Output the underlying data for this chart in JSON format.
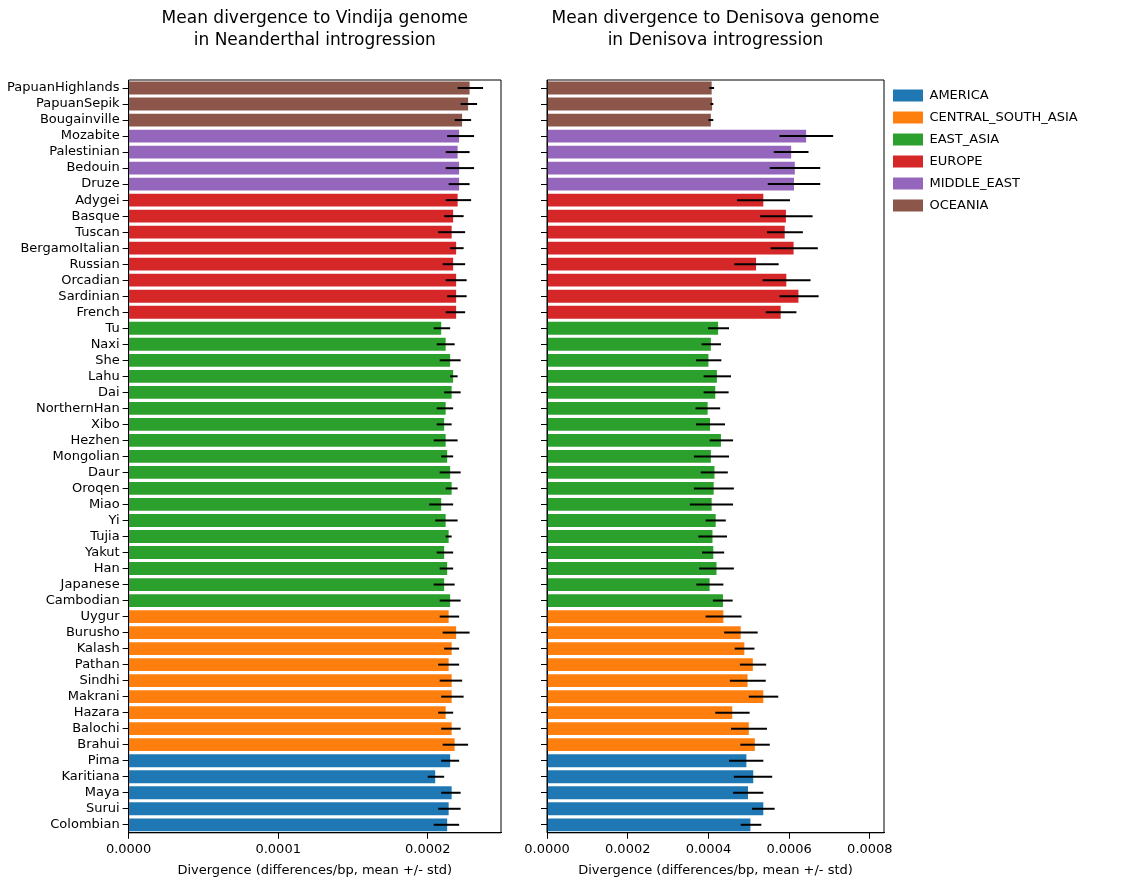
{
  "chart_data": [
    {
      "type": "bar",
      "orientation": "horizontal",
      "title": "Mean divergence to Vindija genome\nin Neanderthal introgression",
      "xlabel": "Divergence (differences/bp, mean +/- std)",
      "categories": [
        "PapuanHighlands",
        "PapuanSepik",
        "Bougainville",
        "Mozabite",
        "Palestinian",
        "Bedouin",
        "Druze",
        "Adygei",
        "Basque",
        "Tuscan",
        "BergamoItalian",
        "Russian",
        "Orcadian",
        "Sardinian",
        "French",
        "Tu",
        "Naxi",
        "She",
        "Lahu",
        "Dai",
        "NorthernHan",
        "Xibo",
        "Hezhen",
        "Mongolian",
        "Daur",
        "Oroqen",
        "Miao",
        "Yi",
        "Tujia",
        "Yakut",
        "Han",
        "Japanese",
        "Cambodian",
        "Uygur",
        "Burusho",
        "Kalash",
        "Pathan",
        "Sindhi",
        "Makrani",
        "Hazara",
        "Balochi",
        "Brahui",
        "Pima",
        "Karitiana",
        "Maya",
        "Surui",
        "Colombian"
      ],
      "xlim": [
        0,
        0.000249
      ],
      "xticks": [
        {
          "value": 0,
          "label": "0.0000"
        },
        {
          "value": 0.0001,
          "label": "0.0001"
        },
        {
          "value": 0.0002,
          "label": "0.0002"
        }
      ],
      "grid": false,
      "series": [
        {
          "color": "#1f77b4",
          "values": [
            null,
            null,
            null,
            null,
            null,
            null,
            null,
            null,
            null,
            null,
            null,
            null,
            null,
            null,
            null,
            null,
            null,
            null,
            null,
            null,
            null,
            null,
            null,
            null,
            null,
            null,
            null,
            null,
            null,
            null,
            null,
            null,
            null,
            null,
            null,
            null,
            null,
            null,
            null,
            null,
            null,
            null,
            0.000215,
            0.000205,
            0.000216,
            0.000214,
            0.000213
          ],
          "errors": [
            null,
            null,
            null,
            null,
            null,
            null,
            null,
            null,
            null,
            null,
            null,
            null,
            null,
            null,
            null,
            null,
            null,
            null,
            null,
            null,
            null,
            null,
            null,
            null,
            null,
            null,
            null,
            null,
            null,
            null,
            null,
            null,
            null,
            null,
            null,
            null,
            null,
            null,
            null,
            null,
            null,
            null,
            [
              0.000209,
              0.000221
            ],
            [
              0.0002,
              0.000211
            ],
            [
              0.000209,
              0.000222
            ],
            [
              0.000207,
              0.000222
            ],
            [
              0.000204,
              0.000221
            ]
          ]
        },
        {
          "color": "#ff7f0e",
          "values": [
            null,
            null,
            null,
            null,
            null,
            null,
            null,
            null,
            null,
            null,
            null,
            null,
            null,
            null,
            null,
            null,
            null,
            null,
            null,
            null,
            null,
            null,
            null,
            null,
            null,
            null,
            null,
            null,
            null,
            null,
            null,
            null,
            null,
            0.000214,
            0.000219,
            0.000216,
            0.000214,
            0.000216,
            0.000216,
            0.000212,
            0.000216,
            0.000218,
            null,
            null,
            null,
            null,
            null
          ],
          "errors": [
            null,
            null,
            null,
            null,
            null,
            null,
            null,
            null,
            null,
            null,
            null,
            null,
            null,
            null,
            null,
            null,
            null,
            null,
            null,
            null,
            null,
            null,
            null,
            null,
            null,
            null,
            null,
            null,
            null,
            null,
            null,
            null,
            null,
            [
              0.000208,
              0.000221
            ],
            [
              0.00021,
              0.000228
            ],
            [
              0.000211,
              0.000221
            ],
            [
              0.000207,
              0.000221
            ],
            [
              0.000208,
              0.000223
            ],
            [
              0.000209,
              0.000224
            ],
            [
              0.000207,
              0.000217
            ],
            [
              0.000209,
              0.000222
            ],
            [
              0.00021,
              0.000227
            ],
            null,
            null,
            null,
            null,
            null
          ]
        },
        {
          "color": "#2ca02c",
          "values": [
            null,
            null,
            null,
            null,
            null,
            null,
            null,
            null,
            null,
            null,
            null,
            null,
            null,
            null,
            null,
            0.000209,
            0.000212,
            0.000215,
            0.000217,
            0.000216,
            0.000212,
            0.000211,
            0.000212,
            0.000213,
            0.000215,
            0.000216,
            0.000209,
            0.000212,
            0.000214,
            0.000211,
            0.000213,
            0.000211,
            0.000215,
            null,
            null,
            null,
            null,
            null,
            null,
            null,
            null,
            null,
            null,
            null,
            null,
            null,
            null
          ],
          "errors": [
            null,
            null,
            null,
            null,
            null,
            null,
            null,
            null,
            null,
            null,
            null,
            null,
            null,
            null,
            null,
            [
              0.000204,
              0.000215
            ],
            [
              0.000206,
              0.000218
            ],
            [
              0.000208,
              0.000222
            ],
            [
              0.000215,
              0.00022
            ],
            [
              0.000211,
              0.000222
            ],
            [
              0.000206,
              0.000217
            ],
            [
              0.000206,
              0.000216
            ],
            [
              0.000204,
              0.00022
            ],
            [
              0.000209,
              0.000217
            ],
            [
              0.000208,
              0.000222
            ],
            [
              0.000212,
              0.00022
            ],
            [
              0.000201,
              0.000217
            ],
            [
              0.000205,
              0.00022
            ],
            [
              0.000212,
              0.000216
            ],
            [
              0.000206,
              0.000217
            ],
            [
              0.000208,
              0.000217
            ],
            [
              0.000204,
              0.000218
            ],
            [
              0.000208,
              0.000222
            ],
            null,
            null,
            null,
            null,
            null,
            null,
            null,
            null,
            null,
            null,
            null,
            null,
            null,
            null
          ]
        },
        {
          "color": "#d62728",
          "values": [
            null,
            null,
            null,
            null,
            null,
            null,
            null,
            0.00022,
            0.000217,
            0.000216,
            0.000219,
            0.000217,
            0.000219,
            0.000219,
            0.000219,
            null,
            null,
            null,
            null,
            null,
            null,
            null,
            null,
            null,
            null,
            null,
            null,
            null,
            null,
            null,
            null,
            null,
            null,
            null,
            null,
            null,
            null,
            null,
            null,
            null,
            null,
            null,
            null,
            null,
            null,
            null,
            null
          ],
          "errors": [
            null,
            null,
            null,
            null,
            null,
            null,
            null,
            [
              0.000212,
              0.000229
            ],
            [
              0.000211,
              0.000224
            ],
            [
              0.000207,
              0.000225
            ],
            [
              0.000215,
              0.000224
            ],
            [
              0.00021,
              0.000225
            ],
            [
              0.000212,
              0.000226
            ],
            [
              0.000213,
              0.000226
            ],
            [
              0.000212,
              0.000225
            ],
            null,
            null,
            null,
            null,
            null,
            null,
            null,
            null,
            null,
            null,
            null,
            null,
            null,
            null,
            null,
            null,
            null,
            null,
            null,
            null,
            null,
            null,
            null,
            null,
            null,
            null,
            null,
            null,
            null,
            null,
            null,
            null
          ]
        },
        {
          "color": "#9467bd",
          "values": [
            null,
            null,
            null,
            0.000221,
            0.00022,
            0.000221,
            0.000221,
            null,
            null,
            null,
            null,
            null,
            null,
            null,
            null,
            null,
            null,
            null,
            null,
            null,
            null,
            null,
            null,
            null,
            null,
            null,
            null,
            null,
            null,
            null,
            null,
            null,
            null,
            null,
            null,
            null,
            null,
            null,
            null,
            null,
            null,
            null,
            null,
            null,
            null,
            null,
            null
          ],
          "errors": [
            null,
            null,
            null,
            [
              0.000213,
              0.000231
            ],
            [
              0.000212,
              0.000228
            ],
            [
              0.000212,
              0.000231
            ],
            [
              0.000214,
              0.000228
            ],
            null,
            null,
            null,
            null,
            null,
            null,
            null,
            null,
            null,
            null,
            null,
            null,
            null,
            null,
            null,
            null,
            null,
            null,
            null,
            null,
            null,
            null,
            null,
            null,
            null,
            null,
            null,
            null,
            null,
            null,
            null,
            null,
            null,
            null,
            null,
            null,
            null,
            null,
            null,
            null
          ]
        },
        {
          "color": "#8c564b",
          "values": [
            0.000228,
            0.000227,
            0.000223,
            null,
            null,
            null,
            null,
            null,
            null,
            null,
            null,
            null,
            null,
            null,
            null,
            null,
            null,
            null,
            null,
            null,
            null,
            null,
            null,
            null,
            null,
            null,
            null,
            null,
            null,
            null,
            null,
            null,
            null,
            null,
            null,
            null,
            null,
            null,
            null,
            null,
            null,
            null,
            null,
            null,
            null,
            null,
            null
          ],
          "errors": [
            [
              0.00022,
              0.000237
            ],
            [
              0.000222,
              0.000233
            ],
            [
              0.000218,
              0.000229
            ],
            null,
            null,
            null,
            null,
            null,
            null,
            null,
            null,
            null,
            null,
            null,
            null,
            null,
            null,
            null,
            null,
            null,
            null,
            null,
            null,
            null,
            null,
            null,
            null,
            null,
            null,
            null,
            null,
            null,
            null,
            null,
            null,
            null,
            null,
            null,
            null,
            null,
            null,
            null,
            null,
            null,
            null,
            null,
            null
          ]
        }
      ]
    },
    {
      "type": "bar",
      "orientation": "horizontal",
      "title": "Mean divergence to Denisova genome\nin Denisova introgression",
      "xlabel": "Divergence (differences/bp, mean +/- std)",
      "categories": [
        null,
        null,
        null,
        null,
        null,
        null,
        null,
        null,
        null,
        null,
        null,
        null,
        null,
        null,
        null,
        null,
        null,
        null,
        null,
        null,
        null,
        null,
        null,
        null,
        null,
        null,
        null,
        null,
        null,
        null,
        null,
        null,
        null,
        null,
        null,
        null,
        null,
        null,
        null,
        null,
        null,
        null,
        null,
        null,
        null,
        null,
        null
      ],
      "xlim": [
        0,
        0.000835
      ],
      "xticks": [
        {
          "value": 0,
          "label": "0.0000"
        },
        {
          "value": 0.0002,
          "label": "0.0002"
        },
        {
          "value": 0.0004,
          "label": "0.0004"
        },
        {
          "value": 0.0006,
          "label": "0.0006"
        },
        {
          "value": 0.0008,
          "label": "0.0008"
        }
      ],
      "grid": false,
      "tick_labels": "x",
      "legend": "top right",
      "series": [
        {
          "name": "AMERICA",
          "color": "#1f77b4",
          "values": [
            null,
            null,
            null,
            null,
            null,
            null,
            null,
            null,
            null,
            null,
            null,
            null,
            null,
            null,
            null,
            null,
            null,
            null,
            null,
            null,
            null,
            null,
            null,
            null,
            null,
            null,
            null,
            null,
            null,
            null,
            null,
            null,
            null,
            null,
            null,
            null,
            null,
            null,
            null,
            null,
            null,
            null,
            0.000494,
            0.000511,
            0.000498,
            0.000536,
            0.000504
          ],
          "errors": [
            null,
            null,
            null,
            null,
            null,
            null,
            null,
            null,
            null,
            null,
            null,
            null,
            null,
            null,
            null,
            null,
            null,
            null,
            null,
            null,
            null,
            null,
            null,
            null,
            null,
            null,
            null,
            null,
            null,
            null,
            null,
            null,
            null,
            null,
            null,
            null,
            null,
            null,
            null,
            null,
            null,
            null,
            [
              0.000451,
              0.000536
            ],
            [
              0.000463,
              0.000558
            ],
            [
              0.000461,
              0.000536
            ],
            [
              0.000508,
              0.000564
            ],
            [
              0.00048,
              0.000531
            ]
          ]
        },
        {
          "name": "CENTRAL_SOUTH_ASIA",
          "color": "#ff7f0e",
          "values": [
            null,
            null,
            null,
            null,
            null,
            null,
            null,
            null,
            null,
            null,
            null,
            null,
            null,
            null,
            null,
            null,
            null,
            null,
            null,
            null,
            null,
            null,
            null,
            null,
            null,
            null,
            null,
            null,
            null,
            null,
            null,
            null,
            null,
            0.000437,
            0.00048,
            0.000489,
            0.00051,
            0.000497,
            0.000536,
            0.000459,
            0.0005,
            0.000515,
            null,
            null,
            null,
            null,
            null
          ],
          "errors": [
            null,
            null,
            null,
            null,
            null,
            null,
            null,
            null,
            null,
            null,
            null,
            null,
            null,
            null,
            null,
            null,
            null,
            null,
            null,
            null,
            null,
            null,
            null,
            null,
            null,
            null,
            null,
            null,
            null,
            null,
            null,
            null,
            null,
            [
              0.000393,
              0.000482
            ],
            [
              0.000439,
              0.000522
            ],
            [
              0.000465,
              0.000514
            ],
            [
              0.000478,
              0.000543
            ],
            [
              0.000453,
              0.000542
            ],
            [
              0.0005,
              0.000573
            ],
            [
              0.000417,
              0.000502
            ],
            [
              0.000456,
              0.000545
            ],
            [
              0.000479,
              0.000552
            ],
            null,
            null,
            null,
            null,
            null
          ]
        },
        {
          "name": "EAST_ASIA",
          "color": "#2ca02c",
          "values": [
            null,
            null,
            null,
            null,
            null,
            null,
            null,
            null,
            null,
            null,
            null,
            null,
            null,
            null,
            null,
            0.000424,
            0.000406,
            0.0004,
            0.000421,
            0.000417,
            0.000398,
            0.000404,
            0.000431,
            0.000406,
            0.000415,
            0.000413,
            0.000408,
            0.000418,
            0.00041,
            0.000412,
            0.00042,
            0.000403,
            0.000436,
            null,
            null,
            null,
            null,
            null,
            null,
            null,
            null,
            null,
            null,
            null,
            null,
            null,
            null
          ],
          "errors": [
            null,
            null,
            null,
            null,
            null,
            null,
            null,
            null,
            null,
            null,
            null,
            null,
            null,
            null,
            null,
            [
              0.000399,
              0.000451
            ],
            [
              0.000383,
              0.000431
            ],
            [
              0.000369,
              0.000432
            ],
            [
              0.000388,
              0.000456
            ],
            [
              0.000388,
              0.00045
            ],
            [
              0.000368,
              0.000429
            ],
            [
              0.000369,
              0.000441
            ],
            [
              0.000403,
              0.000461
            ],
            [
              0.000364,
              0.000451
            ],
            [
              0.000381,
              0.000448
            ],
            [
              0.000364,
              0.000463
            ],
            [
              0.000354,
              0.000461
            ],
            [
              0.000393,
              0.000443
            ],
            [
              0.000375,
              0.000446
            ],
            [
              0.000384,
              0.000439
            ],
            [
              0.000377,
              0.000463
            ],
            [
              0.00037,
              0.000437
            ],
            [
              0.000411,
              0.00046
            ],
            null,
            null,
            null,
            null,
            null,
            null,
            null,
            null,
            null,
            null,
            null,
            null,
            null,
            null
          ]
        },
        {
          "name": "EUROPE",
          "color": "#d62728",
          "values": [
            null,
            null,
            null,
            null,
            null,
            null,
            null,
            0.000536,
            0.000592,
            0.000589,
            0.000611,
            0.000518,
            0.000593,
            0.000623,
            0.000579,
            null,
            null,
            null,
            null,
            null,
            null,
            null,
            null,
            null,
            null,
            null,
            null,
            null,
            null,
            null,
            null,
            null,
            null,
            null,
            null,
            null,
            null,
            null,
            null,
            null,
            null,
            null,
            null,
            null,
            null,
            null,
            null
          ],
          "errors": [
            null,
            null,
            null,
            null,
            null,
            null,
            null,
            [
              0.000471,
              0.000602
            ],
            [
              0.000528,
              0.000658
            ],
            [
              0.000545,
              0.000634
            ],
            [
              0.000554,
              0.000671
            ],
            [
              0.000464,
              0.000574
            ],
            [
              0.000534,
              0.000653
            ],
            [
              0.000576,
              0.000673
            ],
            [
              0.000542,
              0.000618
            ],
            null,
            null,
            null,
            null,
            null,
            null,
            null,
            null,
            null,
            null,
            null,
            null,
            null,
            null,
            null,
            null,
            null,
            null,
            null,
            null,
            null,
            null,
            null,
            null,
            null,
            null,
            null,
            null,
            null,
            null,
            null,
            null
          ]
        },
        {
          "name": "MIDDLE_EAST",
          "color": "#9467bd",
          "values": [
            null,
            null,
            null,
            0.000642,
            0.000605,
            0.000614,
            0.000612,
            null,
            null,
            null,
            null,
            null,
            null,
            null,
            null,
            null,
            null,
            null,
            null,
            null,
            null,
            null,
            null,
            null,
            null,
            null,
            null,
            null,
            null,
            null,
            null,
            null,
            null,
            null,
            null,
            null,
            null,
            null,
            null,
            null,
            null,
            null,
            null,
            null,
            null,
            null,
            null
          ],
          "errors": [
            null,
            null,
            null,
            [
              0.000576,
              0.000709
            ],
            [
              0.000562,
              0.000648
            ],
            [
              0.000552,
              0.000677
            ],
            [
              0.000547,
              0.000677
            ],
            null,
            null,
            null,
            null,
            null,
            null,
            null,
            null,
            null,
            null,
            null,
            null,
            null,
            null,
            null,
            null,
            null,
            null,
            null,
            null,
            null,
            null,
            null,
            null,
            null,
            null,
            null,
            null,
            null,
            null,
            null,
            null,
            null,
            null,
            null,
            null,
            null,
            null,
            null,
            null
          ]
        },
        {
          "name": "OCEANIA",
          "color": "#8c564b",
          "values": [
            0.000408,
            0.000409,
            0.000406,
            null,
            null,
            null,
            null,
            null,
            null,
            null,
            null,
            null,
            null,
            null,
            null,
            null,
            null,
            null,
            null,
            null,
            null,
            null,
            null,
            null,
            null,
            null,
            null,
            null,
            null,
            null,
            null,
            null,
            null,
            null,
            null,
            null,
            null,
            null,
            null,
            null,
            null,
            null,
            null,
            null,
            null,
            null,
            null
          ],
          "errors": [
            [
              0.000402,
              0.000414
            ],
            [
              0.000405,
              0.000412
            ],
            [
              0.0004,
              0.000412
            ],
            null,
            null,
            null,
            null,
            null,
            null,
            null,
            null,
            null,
            null,
            null,
            null,
            null,
            null,
            null,
            null,
            null,
            null,
            null,
            null,
            null,
            null,
            null,
            null,
            null,
            null,
            null,
            null,
            null,
            null,
            null,
            null,
            null,
            null,
            null,
            null,
            null,
            null,
            null,
            null,
            null,
            null,
            null,
            null
          ]
        }
      ]
    }
  ]
}
